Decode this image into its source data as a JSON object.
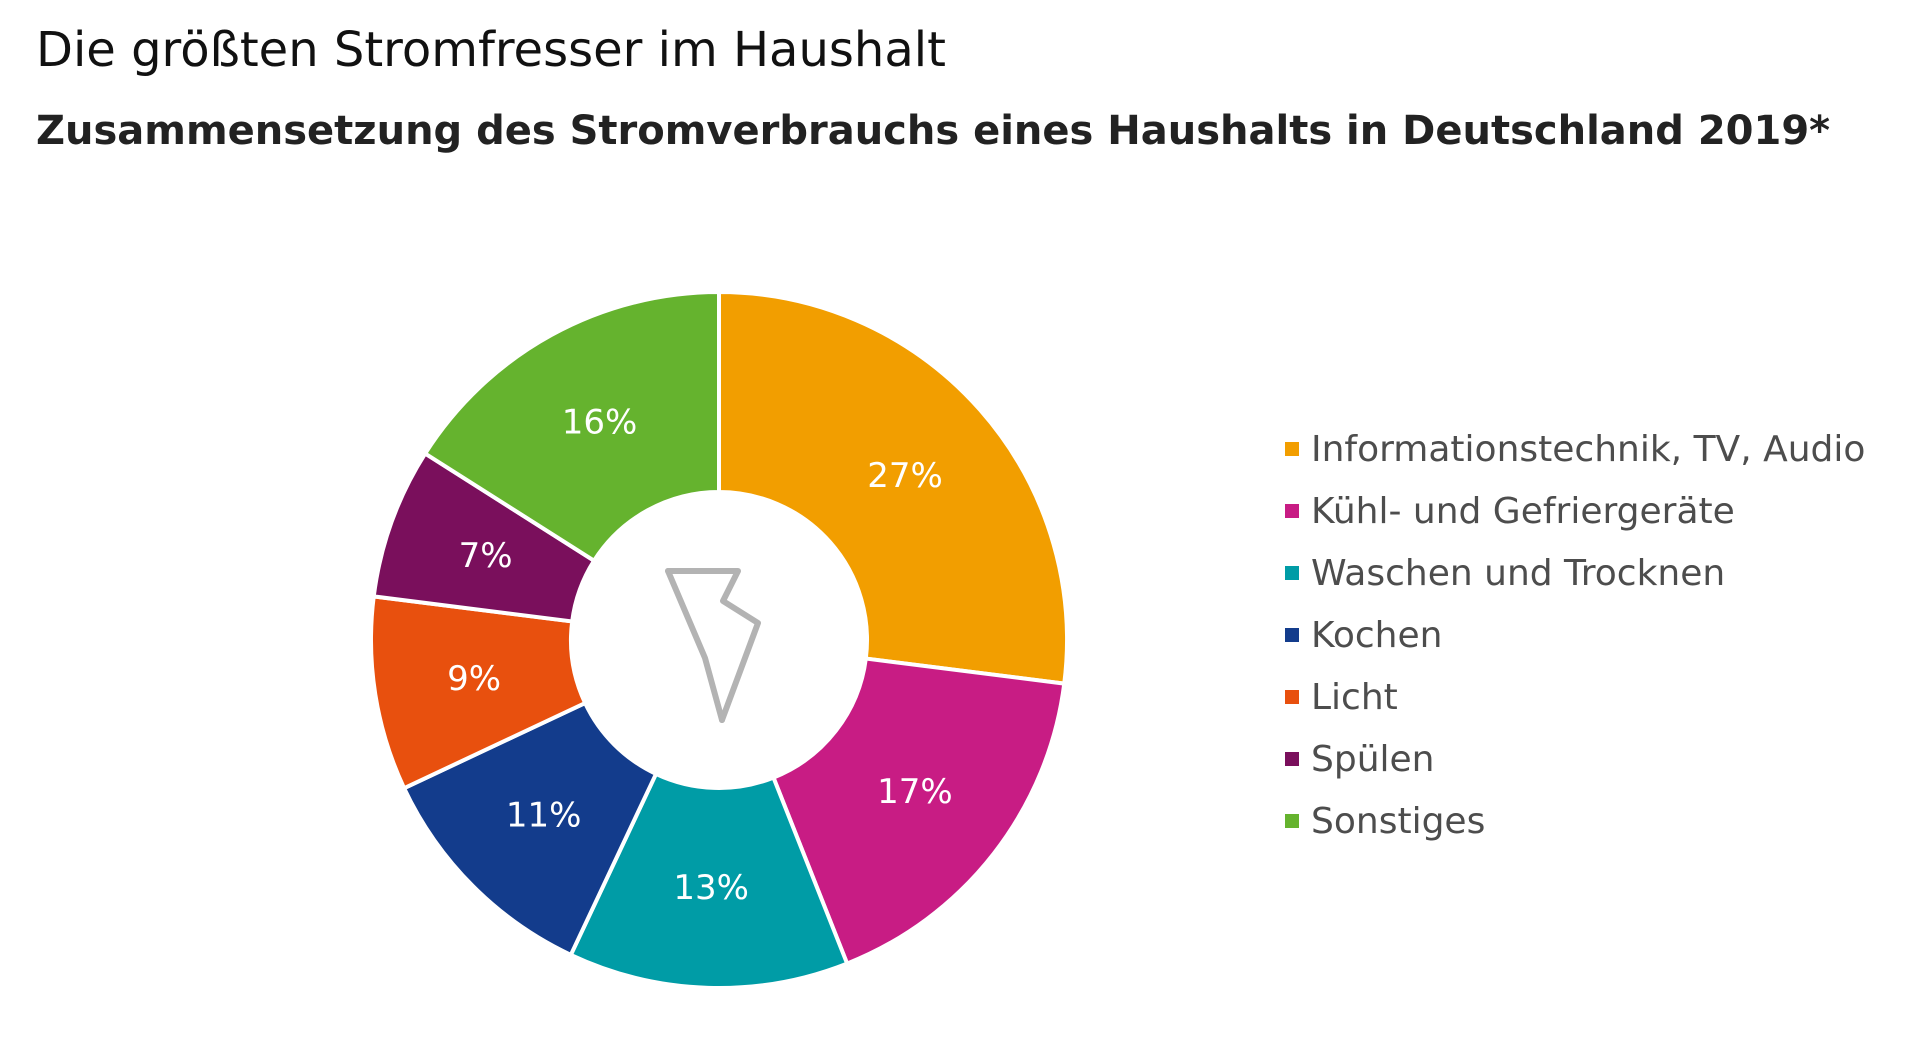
{
  "chart_data": {
    "type": "pie",
    "variant": "donut",
    "title": "Die größten Stromfresser im Haushalt",
    "subtitle": "Zusammensetzung des Stromverbrauchs eines Haushalts in Deutschland 2019*",
    "center_icon": "lightning-bolt-icon",
    "unit": "%",
    "legend_position": "right",
    "slices": [
      {
        "label": "Informationstechnik, TV, Audio",
        "value": 27,
        "display": "27%",
        "color": "#F29E00"
      },
      {
        "label": "Kühl- und Gefriergeräte",
        "value": 17,
        "display": "17%",
        "color": "#C81C84"
      },
      {
        "label": "Waschen und Trocknen",
        "value": 13,
        "display": "13%",
        "color": "#009CA6"
      },
      {
        "label": "Kochen",
        "value": 11,
        "display": "11%",
        "color": "#133C8C"
      },
      {
        "label": "Licht",
        "value": 9,
        "display": "9%",
        "color": "#E8500E"
      },
      {
        "label": "Spülen",
        "value": 7,
        "display": "7%",
        "color": "#7A0F5C"
      },
      {
        "label": "Sonstiges",
        "value": 16,
        "display": "16%",
        "color": "#65B32E"
      }
    ]
  }
}
